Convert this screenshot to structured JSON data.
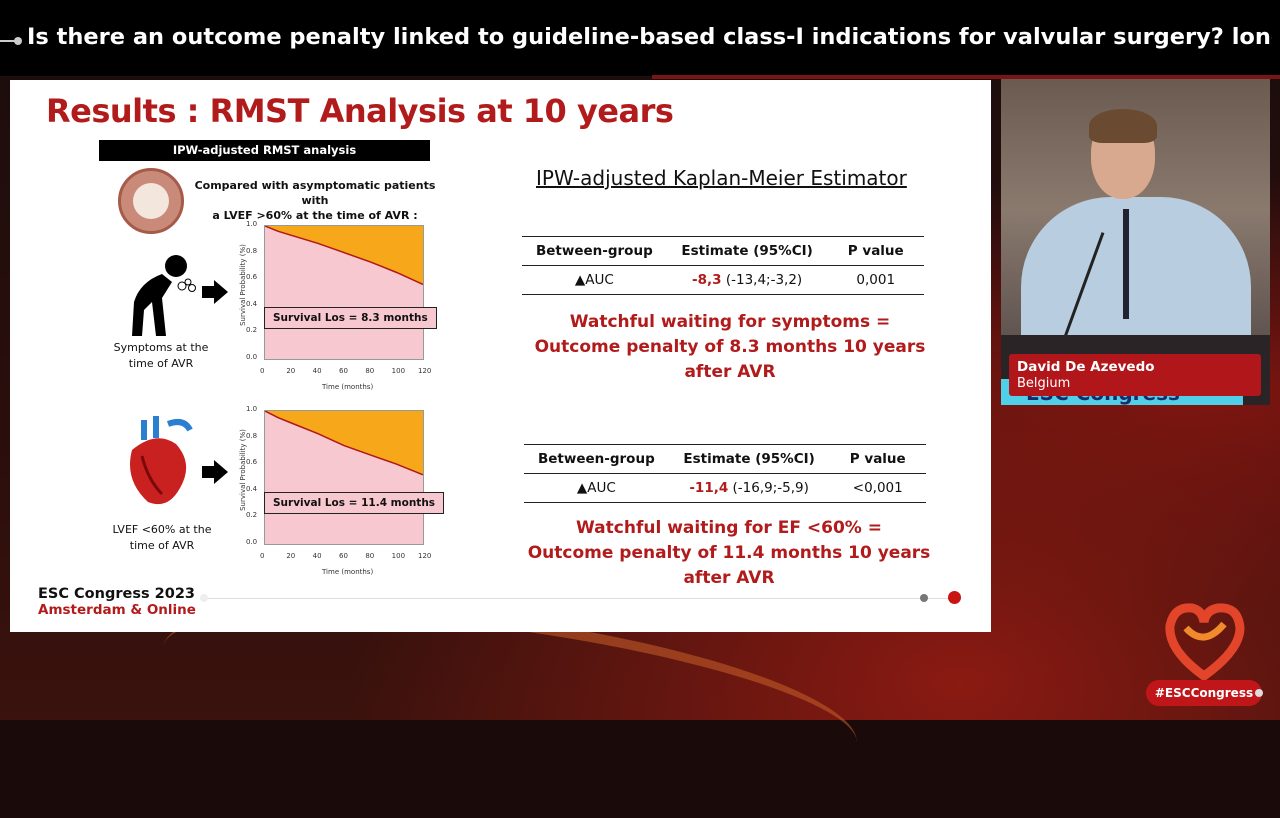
{
  "video": {
    "title": "Is there an outcome penalty linked to guideline-based class-I indications for valvular surgery? long-...",
    "speaker_name": "David De Azevedo",
    "speaker_country": "Belgium",
    "podium_text": "ESC Congress",
    "hashtag": "#ESCCongress"
  },
  "slide": {
    "title": "Results : RMST Analysis at 10 years",
    "left_header": "IPW-adjusted RMST analysis",
    "comparison_line1": "Compared with asymptomatic patients with",
    "comparison_line2": "a LVEF >60% at the time of AVR :",
    "fig1_label_line1": "Symptoms at the",
    "fig1_label_line2": "time of AVR",
    "fig2_label_line1": "LVEF <60% at the",
    "fig2_label_line2": "time of AVR",
    "km_title": "IPW-adjusted Kaplan-Meier Estimator",
    "table_headers": [
      "Between-group",
      "Estimate (95%CI)",
      "P value"
    ],
    "table1": {
      "group": "▲AUC",
      "estimate_bold": "-8,3",
      "estimate_ci": " (-13,4;-3,2)",
      "p": "0,001"
    },
    "penalty1_line1": "Watchful waiting for symptoms =",
    "penalty1_line2": "Outcome penalty of 8.3 months 10 years",
    "penalty1_line3": "after AVR",
    "table2": {
      "group": "▲AUC",
      "estimate_bold": "-11,4",
      "estimate_ci": " (-16,9;-5,9)",
      "p": "<0,001"
    },
    "penalty2_line1": "Watchful waiting for EF <60% =",
    "penalty2_line2": "Outcome penalty of 11.4 months 10 years",
    "penalty2_line3": "after AVR",
    "footer_line1": "ESC Congress 2023",
    "footer_line2": "Amsterdam & Online"
  },
  "chart_data": [
    {
      "type": "area",
      "ylabel": "Survival Probability (%)",
      "xlabel": "Time (months)",
      "x_ticks": [
        "0",
        "20",
        "40",
        "60",
        "80",
        "100",
        "120"
      ],
      "y_ticks": [
        "0.0",
        "0.2",
        "0.4",
        "0.6",
        "0.8",
        "1.0"
      ],
      "xlim": [
        0,
        120
      ],
      "ylim": [
        0,
        1
      ],
      "annotation": "Survival Los = 8.3 months",
      "x": [
        0,
        10,
        20,
        40,
        60,
        80,
        100,
        120
      ],
      "y": [
        1.0,
        0.96,
        0.93,
        0.87,
        0.8,
        0.73,
        0.65,
        0.56
      ]
    },
    {
      "type": "area",
      "ylabel": "Survival Probability (%)",
      "xlabel": "Time (months)",
      "x_ticks": [
        "0",
        "20",
        "40",
        "60",
        "80",
        "100",
        "120"
      ],
      "y_ticks": [
        "0.0",
        "0.2",
        "0.4",
        "0.6",
        "0.8",
        "1.0"
      ],
      "xlim": [
        0,
        120
      ],
      "ylim": [
        0,
        1
      ],
      "annotation": "Survival Los = 11.4 months",
      "x": [
        0,
        10,
        20,
        40,
        60,
        80,
        100,
        120
      ],
      "y": [
        1.0,
        0.95,
        0.91,
        0.83,
        0.74,
        0.67,
        0.6,
        0.52
      ]
    }
  ]
}
